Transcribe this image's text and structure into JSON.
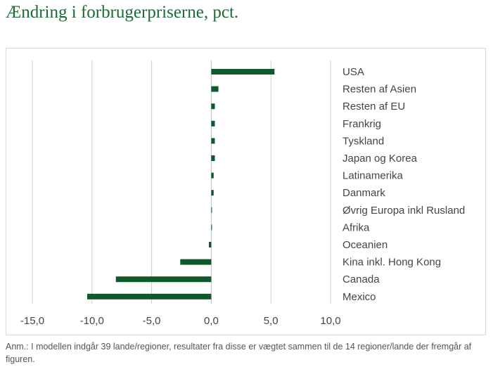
{
  "title": "Ændring i forbrugerpriserne, pct.",
  "note": "Anm.: I modellen indgår 39 lande/regioner, resultater fra disse er vægtet sammen til de 14 regioner/lande der fremgår af figuren.",
  "colors": {
    "bar": "#0e5a2a",
    "title": "#1c6b35",
    "grid": "#d0d0d0"
  },
  "chart_data": {
    "type": "bar",
    "orientation": "horizontal",
    "categories": [
      "USA",
      "Resten af Asien",
      "Resten af EU",
      "Frankrig",
      "Tyskland",
      "Japan og Korea",
      "Latinamerika",
      "Danmark",
      "Øvrig Europa inkl Rusland",
      "Afrika",
      "Oceanien",
      "Kina inkl. Hong Kong",
      "Canada",
      "Mexico"
    ],
    "values": [
      5.3,
      0.6,
      0.3,
      0.3,
      0.3,
      0.3,
      0.2,
      0.2,
      0.05,
      0.02,
      -0.2,
      -2.6,
      -8.0,
      -10.4
    ],
    "xlim": [
      -15,
      10
    ],
    "xticks": [
      -15,
      -10,
      -5,
      0,
      5,
      10
    ],
    "xtick_labels": [
      "-15,0",
      "-10,0",
      "-5,0",
      "0,0",
      "5,0",
      "10,0"
    ],
    "grid": "vertical",
    "legend": "none"
  }
}
